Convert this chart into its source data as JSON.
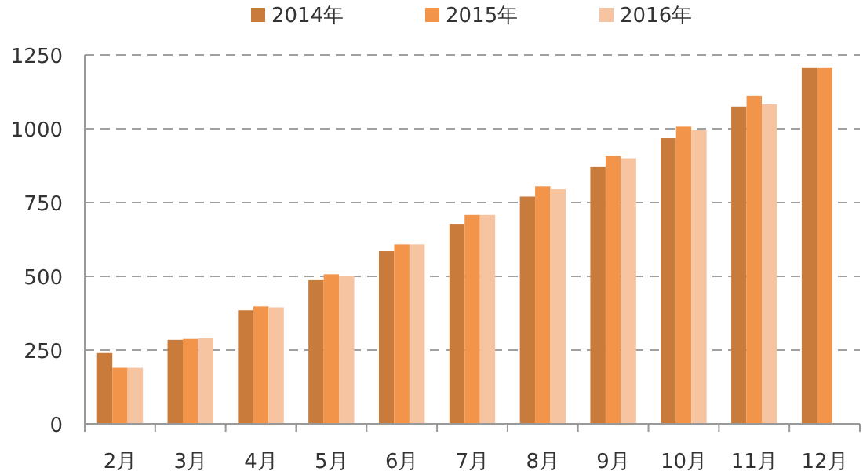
{
  "chart_data": {
    "type": "bar",
    "categories": [
      "2月",
      "3月",
      "4月",
      "5月",
      "6月",
      "7月",
      "8月",
      "9月",
      "10月",
      "11月",
      "12月"
    ],
    "series": [
      {
        "name": "2014年",
        "color": "#c97b3c",
        "values": [
          240,
          285,
          385,
          487,
          585,
          678,
          770,
          870,
          968,
          1075,
          1208
        ]
      },
      {
        "name": "2015年",
        "color": "#f2944a",
        "values": [
          190,
          288,
          398,
          507,
          608,
          708,
          805,
          907,
          1007,
          1112,
          1208
        ]
      },
      {
        "name": "2016年",
        "color": "#f6c4a0",
        "values": [
          190,
          290,
          395,
          500,
          608,
          708,
          795,
          900,
          995,
          1083,
          null
        ]
      }
    ],
    "ylim": [
      0,
      1250
    ],
    "yticks": [
      0,
      250,
      500,
      750,
      1000,
      1250
    ],
    "grid": "y",
    "legend": "top"
  }
}
